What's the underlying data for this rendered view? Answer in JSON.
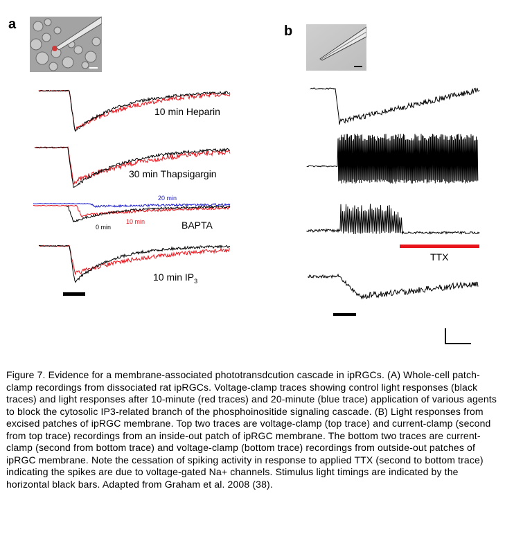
{
  "panels": {
    "a": {
      "label": "a",
      "traces": [
        {
          "label": "10 min Heparin"
        },
        {
          "label": "30 min Thapsigargin"
        },
        {
          "label": "BAPTA",
          "annotations": [
            "20 min",
            "10 min",
            "0 min"
          ]
        },
        {
          "label_main": "10 min IP",
          "label_sub": "3"
        }
      ]
    },
    "b": {
      "label": "b",
      "ttx_label": "TTX"
    }
  },
  "colors": {
    "control": "#000000",
    "ten_min": "#e8141c",
    "twenty_min": "#1a1acc",
    "ttx_bar": "#e8141c"
  },
  "caption": "Figure 7. Evidence for a membrane-associated phototransdcution cascade in ipRGCs. (A) Whole-cell patch-clamp recordings from dissociated rat ipRGCs. Voltage-clamp traces showing control light responses (black traces) and light responses after 10-minute (red traces) and 20-minute (blue trace) application of various agents to block the cytosolic IP3-related branch of the phosphoinositide signaling cascade. (B) Light responses from excised patches of ipRGC membrane. Top two traces are voltage-clamp (top trace) and current-clamp (second from top trace) recordings from an inside-out patch of ipRGC membrane. The bottom two traces are current-clamp (second from bottom trace) and voltage-clamp (bottom trace) recordings from outside-out patches of ipRGC membrane. Note the cessation of spiking activity in response to applied TTX (second to bottom trace) indicating the spikes are due to voltage-gated Na+ channels. Stimulus light timings are indicated by the horizontal black bars. Adapted from Graham et al. 2008 (38)."
}
